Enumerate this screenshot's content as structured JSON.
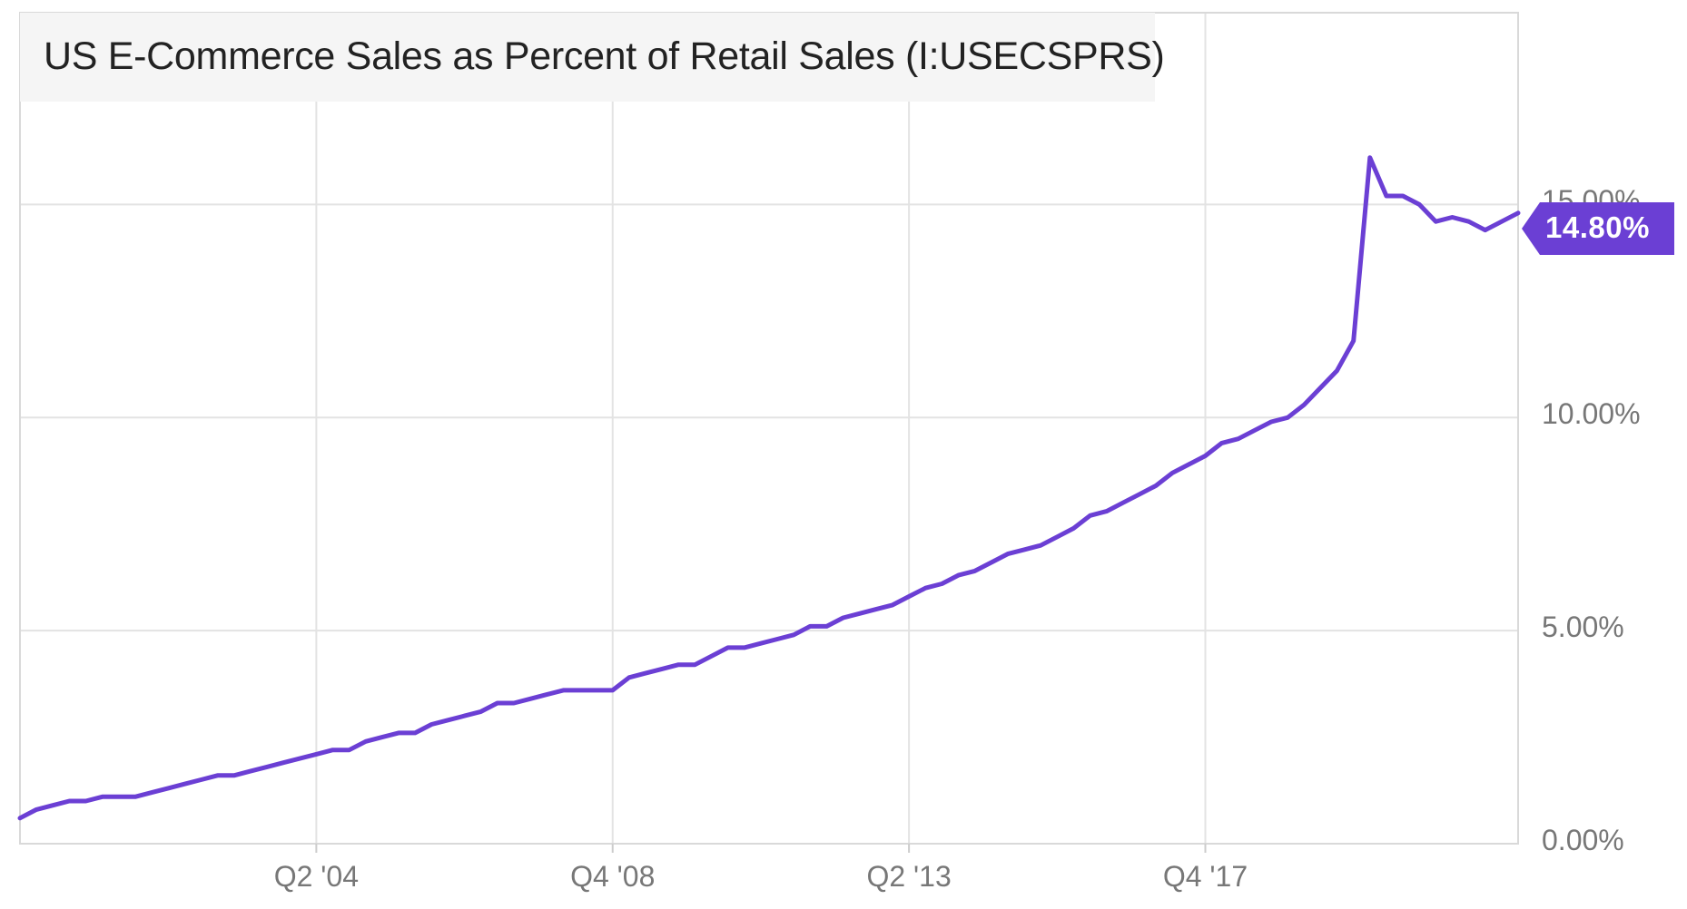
{
  "chart_data": {
    "type": "line",
    "title": "US E-Commerce Sales as Percent of Retail Sales (I:USECSPRS)",
    "xlabel": "",
    "ylabel": "",
    "x_tick_labels": [
      "Q2 '04",
      "Q4 '08",
      "Q2 '13",
      "Q4 '17"
    ],
    "y_tick_labels": [
      "0.00%",
      "5.00%",
      "10.00%",
      "15.00%"
    ],
    "ylim": [
      0,
      19.5
    ],
    "grid": true,
    "line_color": "#6b3fd4",
    "last_value_label": "14.80%",
    "series": [
      {
        "x": [
          "Q4 '99",
          "Q1 '00",
          "Q2 '00",
          "Q3 '00",
          "Q4 '00",
          "Q1 '01",
          "Q2 '01",
          "Q3 '01",
          "Q4 '01",
          "Q1 '02",
          "Q2 '02",
          "Q3 '02",
          "Q4 '02",
          "Q1 '03",
          "Q2 '03",
          "Q3 '03",
          "Q4 '03",
          "Q1 '04",
          "Q2 '04",
          "Q3 '04",
          "Q4 '04",
          "Q1 '05",
          "Q2 '05",
          "Q3 '05",
          "Q4 '05",
          "Q1 '06",
          "Q2 '06",
          "Q3 '06",
          "Q4 '06",
          "Q1 '07",
          "Q2 '07",
          "Q3 '07",
          "Q4 '07",
          "Q1 '08",
          "Q2 '08",
          "Q3 '08",
          "Q4 '08",
          "Q1 '09",
          "Q2 '09",
          "Q3 '09",
          "Q4 '09",
          "Q1 '10",
          "Q2 '10",
          "Q3 '10",
          "Q4 '10",
          "Q1 '11",
          "Q2 '11",
          "Q3 '11",
          "Q4 '11",
          "Q1 '12",
          "Q2 '12",
          "Q3 '12",
          "Q4 '12",
          "Q1 '13",
          "Q2 '13",
          "Q3 '13",
          "Q4 '13",
          "Q1 '14",
          "Q2 '14",
          "Q3 '14",
          "Q4 '14",
          "Q1 '15",
          "Q2 '15",
          "Q3 '15",
          "Q4 '15",
          "Q1 '16",
          "Q2 '16",
          "Q3 '16",
          "Q4 '16",
          "Q1 '17",
          "Q2 '17",
          "Q3 '17",
          "Q4 '17",
          "Q1 '18",
          "Q2 '18",
          "Q3 '18",
          "Q4 '18",
          "Q1 '19",
          "Q2 '19",
          "Q3 '19",
          "Q4 '19",
          "Q1 '20",
          "Q2 '20",
          "Q3 '20",
          "Q4 '20",
          "Q1 '21",
          "Q2 '21",
          "Q3 '21",
          "Q4 '21",
          "Q1 '22",
          "Q2 '22",
          "Q3 '22"
        ],
        "values": [
          0.6,
          0.8,
          0.9,
          1.0,
          1.0,
          1.1,
          1.1,
          1.1,
          1.2,
          1.3,
          1.4,
          1.5,
          1.6,
          1.6,
          1.7,
          1.8,
          1.9,
          2.0,
          2.1,
          2.2,
          2.2,
          2.4,
          2.5,
          2.6,
          2.6,
          2.8,
          2.9,
          3.0,
          3.1,
          3.3,
          3.3,
          3.4,
          3.5,
          3.6,
          3.6,
          3.6,
          3.6,
          3.9,
          4.0,
          4.1,
          4.2,
          4.2,
          4.4,
          4.6,
          4.6,
          4.7,
          4.8,
          4.9,
          5.1,
          5.1,
          5.3,
          5.4,
          5.5,
          5.6,
          5.8,
          6.0,
          6.1,
          6.3,
          6.4,
          6.6,
          6.8,
          6.9,
          7.0,
          7.2,
          7.4,
          7.7,
          7.8,
          8.0,
          8.2,
          8.4,
          8.7,
          8.9,
          9.1,
          9.4,
          9.5,
          9.7,
          9.9,
          10.0,
          10.3,
          10.7,
          11.1,
          11.8,
          16.1,
          15.2,
          15.2,
          15.0,
          14.6,
          14.7,
          14.6,
          14.4,
          14.6,
          14.8
        ]
      }
    ]
  }
}
